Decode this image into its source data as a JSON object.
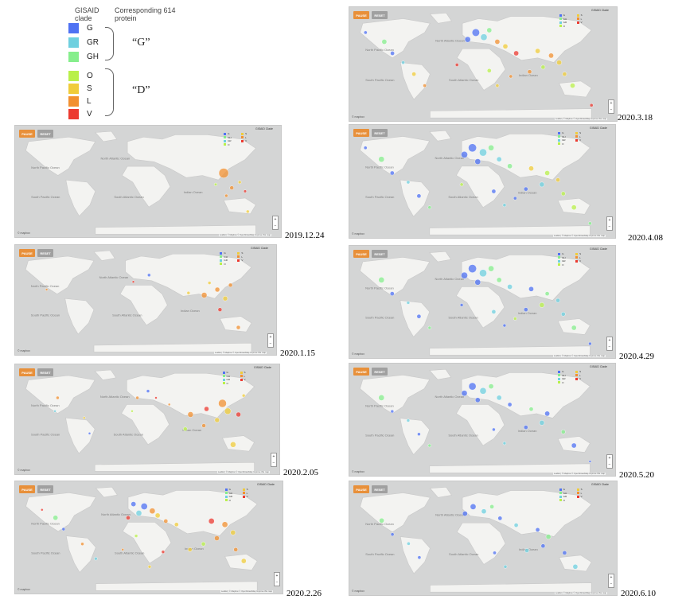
{
  "legend": {
    "header_clade": "GISAID clade",
    "header_protein": "Corresponding 614 protein",
    "clades": [
      {
        "label": "G",
        "color": "#4f72f3"
      },
      {
        "label": "GR",
        "color": "#6fd0df"
      },
      {
        "label": "GH",
        "color": "#86ee8c"
      },
      {
        "label": "O",
        "color": "#b9f04a"
      },
      {
        "label": "S",
        "color": "#f0cc3a"
      },
      {
        "label": "L",
        "color": "#f29030"
      },
      {
        "label": "V",
        "color": "#ec3a30"
      }
    ],
    "group_g": "“G”",
    "group_d": "“D”"
  },
  "map_ui": {
    "pause": "PAUSE",
    "reset": "RESET",
    "clade_title": "GISAID Clade",
    "legend_left": [
      "G",
      "GH",
      "GR",
      "O"
    ],
    "legend_right": [
      "S",
      "L",
      "V"
    ],
    "zoom_in": "+",
    "zoom_out": "−",
    "logo": "© mapbox",
    "attribution": "Leaflet | © Mapbox © OpenStreetMap Improve this map",
    "ocean_labels": [
      "North Pacific Ocean",
      "North Atlantic Ocean",
      "South Pacific Ocean",
      "South Atlantic Ocean",
      "Indian Ocean"
    ]
  },
  "panels": [
    {
      "date": "2019.12.24",
      "bubbles": [
        [
          0.78,
          0.42,
          6,
          "L"
        ],
        [
          0.81,
          0.55,
          2.5,
          "L"
        ],
        [
          0.84,
          0.5,
          2,
          "S"
        ],
        [
          0.79,
          0.62,
          2,
          "L"
        ],
        [
          0.86,
          0.58,
          1.8,
          "V"
        ],
        [
          0.75,
          0.52,
          1.8,
          "O"
        ],
        [
          0.87,
          0.76,
          2,
          "S"
        ]
      ]
    },
    {
      "date": "2020.1.15",
      "bubbles": [
        [
          0.72,
          0.45,
          3.5,
          "L"
        ],
        [
          0.77,
          0.4,
          3,
          "L"
        ],
        [
          0.8,
          0.48,
          3,
          "S"
        ],
        [
          0.78,
          0.58,
          2.5,
          "V"
        ],
        [
          0.82,
          0.36,
          2.5,
          "L"
        ],
        [
          0.66,
          0.43,
          2,
          "S"
        ],
        [
          0.51,
          0.27,
          2,
          "G"
        ],
        [
          0.45,
          0.33,
          1.5,
          "V"
        ],
        [
          0.85,
          0.74,
          2.5,
          "L"
        ],
        [
          0.12,
          0.4,
          1.5,
          "L"
        ],
        [
          0.74,
          0.34,
          2,
          "S"
        ]
      ]
    },
    {
      "date": "2020.2.05",
      "bubbles": [
        [
          0.78,
          0.35,
          5,
          "L"
        ],
        [
          0.8,
          0.42,
          4,
          "S"
        ],
        [
          0.72,
          0.4,
          3,
          "V"
        ],
        [
          0.66,
          0.45,
          3.5,
          "L"
        ],
        [
          0.76,
          0.5,
          3,
          "S"
        ],
        [
          0.71,
          0.55,
          2.5,
          "L"
        ],
        [
          0.64,
          0.58,
          2.5,
          "O"
        ],
        [
          0.84,
          0.45,
          3,
          "V"
        ],
        [
          0.86,
          0.28,
          2,
          "S"
        ],
        [
          0.82,
          0.72,
          3.5,
          "S"
        ],
        [
          0.5,
          0.24,
          2,
          "G"
        ],
        [
          0.46,
          0.3,
          2,
          "L"
        ],
        [
          0.53,
          0.3,
          1.5,
          "V"
        ],
        [
          0.58,
          0.36,
          1.5,
          "L"
        ],
        [
          0.16,
          0.3,
          2,
          "L"
        ],
        [
          0.15,
          0.42,
          1.5,
          "GR"
        ],
        [
          0.26,
          0.48,
          1.5,
          "S"
        ],
        [
          0.28,
          0.62,
          1.5,
          "G"
        ],
        [
          0.44,
          0.42,
          1.5,
          "O"
        ]
      ]
    },
    {
      "date": "2020.2.26",
      "bubbles": [
        [
          0.48,
          0.22,
          4,
          "G"
        ],
        [
          0.46,
          0.28,
          3.5,
          "GR"
        ],
        [
          0.51,
          0.26,
          3.5,
          "L"
        ],
        [
          0.44,
          0.2,
          3,
          "G"
        ],
        [
          0.53,
          0.3,
          3,
          "S"
        ],
        [
          0.42,
          0.32,
          2.5,
          "V"
        ],
        [
          0.56,
          0.35,
          2.5,
          "L"
        ],
        [
          0.6,
          0.38,
          2.5,
          "S"
        ],
        [
          0.73,
          0.35,
          3.5,
          "V"
        ],
        [
          0.78,
          0.38,
          3.5,
          "L"
        ],
        [
          0.81,
          0.45,
          3,
          "S"
        ],
        [
          0.75,
          0.5,
          3,
          "L"
        ],
        [
          0.7,
          0.55,
          2.5,
          "O"
        ],
        [
          0.65,
          0.6,
          2.5,
          "S"
        ],
        [
          0.82,
          0.6,
          2.5,
          "L"
        ],
        [
          0.85,
          0.7,
          3,
          "S"
        ],
        [
          0.15,
          0.32,
          3,
          "GH"
        ],
        [
          0.18,
          0.42,
          2,
          "G"
        ],
        [
          0.25,
          0.55,
          2,
          "L"
        ],
        [
          0.3,
          0.68,
          2,
          "GR"
        ],
        [
          0.55,
          0.62,
          2,
          "V"
        ],
        [
          0.45,
          0.48,
          2,
          "O"
        ],
        [
          0.5,
          0.75,
          2,
          "S"
        ],
        [
          0.4,
          0.6,
          1.5,
          "L"
        ],
        [
          0.1,
          0.25,
          1.5,
          "V"
        ]
      ]
    },
    {
      "date": "2020.3.18",
      "bubbles": [
        [
          0.47,
          0.22,
          4.5,
          "G"
        ],
        [
          0.5,
          0.26,
          4,
          "GR"
        ],
        [
          0.44,
          0.28,
          3.5,
          "G"
        ],
        [
          0.52,
          0.2,
          3,
          "GH"
        ],
        [
          0.55,
          0.3,
          3,
          "L"
        ],
        [
          0.58,
          0.34,
          3,
          "S"
        ],
        [
          0.62,
          0.4,
          3,
          "V"
        ],
        [
          0.7,
          0.38,
          3,
          "S"
        ],
        [
          0.75,
          0.42,
          3,
          "L"
        ],
        [
          0.78,
          0.48,
          3,
          "S"
        ],
        [
          0.72,
          0.52,
          2.5,
          "O"
        ],
        [
          0.67,
          0.56,
          2.5,
          "L"
        ],
        [
          0.8,
          0.58,
          2.5,
          "S"
        ],
        [
          0.83,
          0.68,
          3,
          "O"
        ],
        [
          0.13,
          0.3,
          3,
          "GH"
        ],
        [
          0.16,
          0.4,
          2.5,
          "G"
        ],
        [
          0.2,
          0.48,
          2,
          "GR"
        ],
        [
          0.24,
          0.58,
          2.5,
          "S"
        ],
        [
          0.28,
          0.68,
          2,
          "L"
        ],
        [
          0.4,
          0.5,
          2,
          "V"
        ],
        [
          0.52,
          0.55,
          2.5,
          "O"
        ],
        [
          0.55,
          0.68,
          2,
          "S"
        ],
        [
          0.6,
          0.6,
          2,
          "L"
        ],
        [
          0.06,
          0.22,
          2,
          "G"
        ],
        [
          0.9,
          0.85,
          2,
          "V"
        ]
      ]
    },
    {
      "date": "2020.4.08",
      "bubbles": [
        [
          0.46,
          0.2,
          5,
          "G"
        ],
        [
          0.5,
          0.24,
          4.5,
          "GR"
        ],
        [
          0.43,
          0.26,
          4,
          "G"
        ],
        [
          0.53,
          0.2,
          3.5,
          "GH"
        ],
        [
          0.48,
          0.32,
          3.5,
          "G"
        ],
        [
          0.56,
          0.3,
          3,
          "GR"
        ],
        [
          0.6,
          0.36,
          3,
          "GH"
        ],
        [
          0.68,
          0.38,
          3,
          "S"
        ],
        [
          0.74,
          0.42,
          3,
          "O"
        ],
        [
          0.78,
          0.48,
          2.5,
          "S"
        ],
        [
          0.72,
          0.52,
          3,
          "GR"
        ],
        [
          0.66,
          0.56,
          2.5,
          "G"
        ],
        [
          0.8,
          0.6,
          2.5,
          "O"
        ],
        [
          0.84,
          0.72,
          3,
          "O"
        ],
        [
          0.12,
          0.3,
          3.5,
          "GH"
        ],
        [
          0.16,
          0.42,
          2.5,
          "G"
        ],
        [
          0.22,
          0.5,
          2,
          "GR"
        ],
        [
          0.26,
          0.62,
          2.5,
          "G"
        ],
        [
          0.3,
          0.72,
          2,
          "GH"
        ],
        [
          0.42,
          0.52,
          2,
          "O"
        ],
        [
          0.54,
          0.58,
          2.5,
          "G"
        ],
        [
          0.58,
          0.7,
          2,
          "GR"
        ],
        [
          0.62,
          0.64,
          2,
          "G"
        ],
        [
          0.06,
          0.2,
          2,
          "G"
        ],
        [
          0.9,
          0.86,
          2,
          "GH"
        ]
      ]
    },
    {
      "date": "2020.4.29",
      "bubbles": [
        [
          0.46,
          0.2,
          5,
          "G"
        ],
        [
          0.5,
          0.24,
          4.5,
          "GR"
        ],
        [
          0.43,
          0.26,
          4,
          "G"
        ],
        [
          0.53,
          0.2,
          3.5,
          "GH"
        ],
        [
          0.48,
          0.32,
          3.5,
          "G"
        ],
        [
          0.56,
          0.3,
          3,
          "GH"
        ],
        [
          0.6,
          0.36,
          3,
          "GR"
        ],
        [
          0.68,
          0.38,
          3,
          "G"
        ],
        [
          0.74,
          0.42,
          2.5,
          "GH"
        ],
        [
          0.78,
          0.48,
          2.5,
          "GR"
        ],
        [
          0.72,
          0.52,
          3,
          "O"
        ],
        [
          0.66,
          0.56,
          2.5,
          "G"
        ],
        [
          0.8,
          0.6,
          2.5,
          "GR"
        ],
        [
          0.84,
          0.72,
          3,
          "GH"
        ],
        [
          0.12,
          0.3,
          3.5,
          "GH"
        ],
        [
          0.16,
          0.42,
          2.5,
          "G"
        ],
        [
          0.22,
          0.5,
          2,
          "GR"
        ],
        [
          0.26,
          0.62,
          2.5,
          "G"
        ],
        [
          0.3,
          0.72,
          2,
          "GH"
        ],
        [
          0.42,
          0.52,
          2,
          "G"
        ],
        [
          0.54,
          0.58,
          2.5,
          "GR"
        ],
        [
          0.58,
          0.7,
          2,
          "G"
        ],
        [
          0.62,
          0.64,
          2,
          "O"
        ],
        [
          0.9,
          0.86,
          2,
          "G"
        ]
      ]
    },
    {
      "date": "2020.5.20",
      "bubbles": [
        [
          0.46,
          0.2,
          4.5,
          "G"
        ],
        [
          0.5,
          0.24,
          4,
          "GR"
        ],
        [
          0.43,
          0.26,
          3.5,
          "G"
        ],
        [
          0.53,
          0.2,
          3,
          "GH"
        ],
        [
          0.48,
          0.32,
          3,
          "G"
        ],
        [
          0.56,
          0.3,
          3,
          "GR"
        ],
        [
          0.6,
          0.36,
          2.5,
          "G"
        ],
        [
          0.68,
          0.4,
          2.5,
          "GH"
        ],
        [
          0.74,
          0.44,
          3,
          "G"
        ],
        [
          0.72,
          0.52,
          3,
          "GR"
        ],
        [
          0.66,
          0.56,
          2.5,
          "G"
        ],
        [
          0.8,
          0.6,
          2.5,
          "GH"
        ],
        [
          0.84,
          0.72,
          3,
          "G"
        ],
        [
          0.12,
          0.3,
          3.5,
          "GH"
        ],
        [
          0.16,
          0.42,
          2,
          "G"
        ],
        [
          0.22,
          0.5,
          2,
          "GR"
        ],
        [
          0.26,
          0.62,
          2,
          "G"
        ],
        [
          0.3,
          0.72,
          2,
          "GH"
        ],
        [
          0.54,
          0.58,
          2,
          "G"
        ],
        [
          0.58,
          0.7,
          2,
          "GR"
        ],
        [
          0.9,
          0.86,
          1.5,
          "G"
        ]
      ]
    },
    {
      "date": "2020.6.10",
      "bubbles": [
        [
          0.46,
          0.22,
          3.5,
          "G"
        ],
        [
          0.5,
          0.26,
          3,
          "GR"
        ],
        [
          0.43,
          0.28,
          3,
          "G"
        ],
        [
          0.53,
          0.22,
          2.5,
          "GH"
        ],
        [
          0.56,
          0.32,
          2.5,
          "G"
        ],
        [
          0.62,
          0.38,
          2.5,
          "GR"
        ],
        [
          0.7,
          0.42,
          2.5,
          "G"
        ],
        [
          0.74,
          0.48,
          3,
          "GH"
        ],
        [
          0.72,
          0.56,
          2.5,
          "G"
        ],
        [
          0.66,
          0.6,
          2.5,
          "GR"
        ],
        [
          0.8,
          0.62,
          2.5,
          "G"
        ],
        [
          0.84,
          0.74,
          3,
          "GR"
        ],
        [
          0.12,
          0.34,
          3,
          "GH"
        ],
        [
          0.16,
          0.46,
          2,
          "G"
        ],
        [
          0.22,
          0.54,
          2,
          "GR"
        ],
        [
          0.26,
          0.66,
          2,
          "G"
        ],
        [
          0.54,
          0.62,
          2,
          "G"
        ],
        [
          0.58,
          0.74,
          2,
          "GR"
        ]
      ]
    }
  ]
}
